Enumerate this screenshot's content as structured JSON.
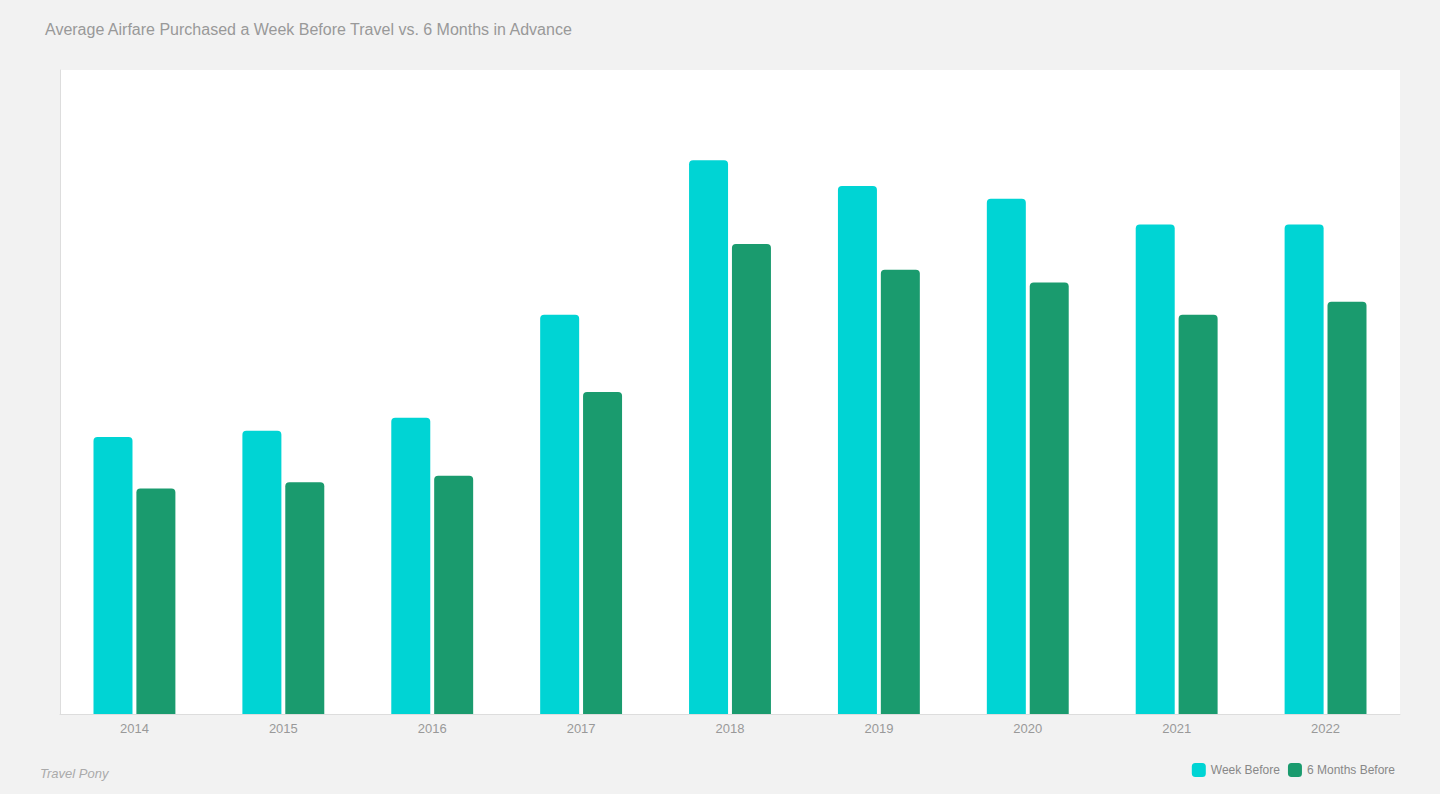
{
  "chart_data": {
    "type": "bar",
    "title": "Average Airfare Purchased a Week Before Travel vs. 6 Months in Advance",
    "categories": [
      "2014",
      "2015",
      "2016",
      "2017",
      "2018",
      "2019",
      "2020",
      "2021",
      "2022"
    ],
    "series": [
      {
        "name": "Week Before",
        "color": "#00D4D4",
        "values": [
          215,
          220,
          230,
          310,
          430,
          410,
          400,
          380,
          380
        ]
      },
      {
        "name": "6 Months Before",
        "color": "#1A9B6E",
        "values": [
          175,
          180,
          185,
          250,
          365,
          345,
          335,
          310,
          320
        ]
      }
    ],
    "ylim": [
      0,
      500
    ],
    "grid": false,
    "tick_labels": "x",
    "legend": "lower right",
    "annotations": [
      "Travel Pony"
    ]
  }
}
